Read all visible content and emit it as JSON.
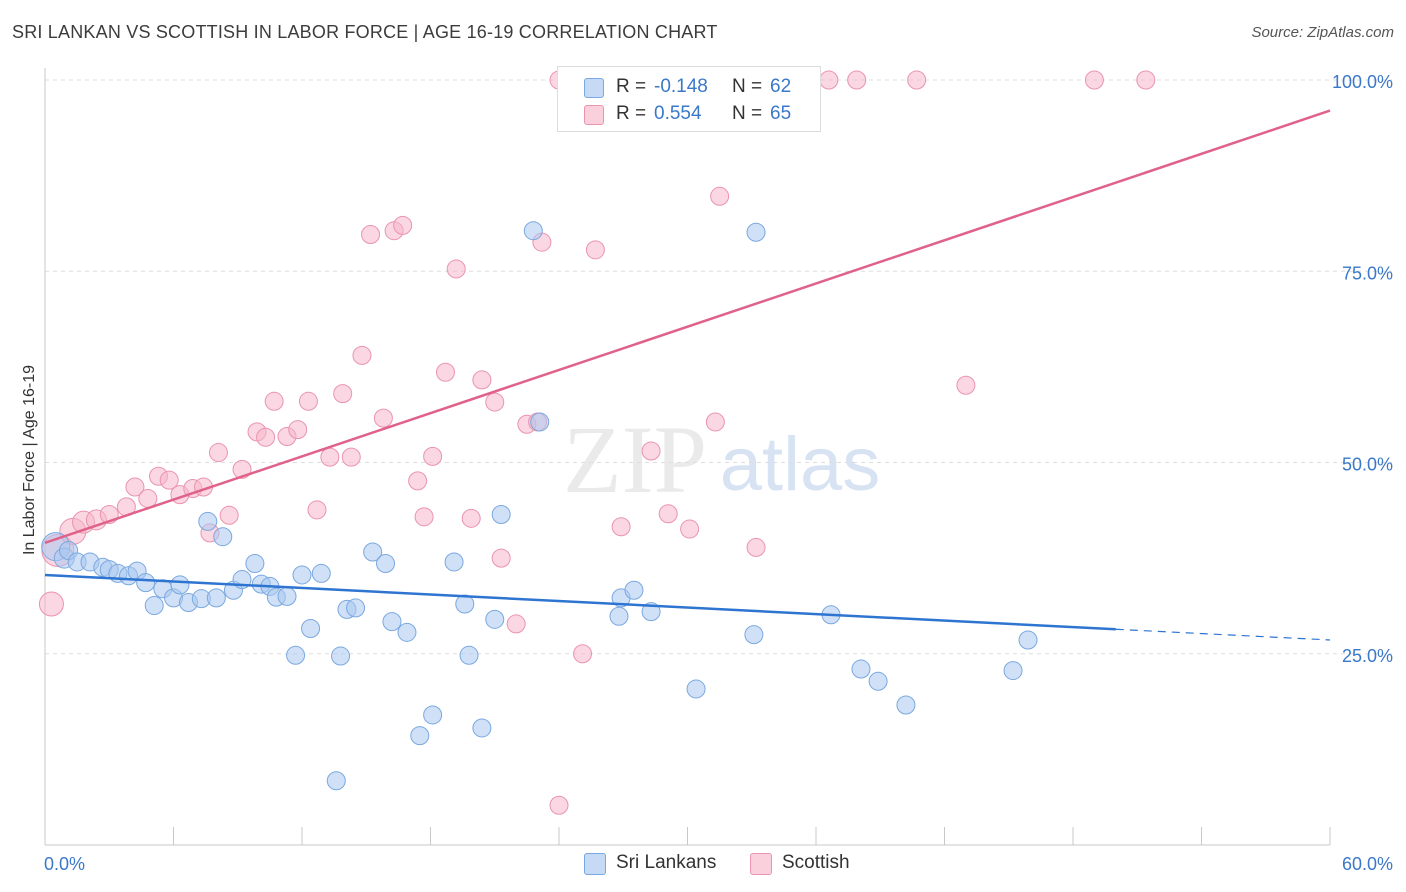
{
  "title": "SRI LANKAN VS SCOTTISH IN LABOR FORCE | AGE 16-19 CORRELATION CHART",
  "source": "Source: ZipAtlas.com",
  "watermark": {
    "zip": "ZIP",
    "atlas": "atlas"
  },
  "legend_stats": [
    {
      "r_label": "R =",
      "r_value": "-0.148",
      "n_label": "N =",
      "n_value": "62",
      "color": "#a9c8f0"
    },
    {
      "r_label": "R =",
      "r_value": "0.554",
      "n_label": "N =",
      "n_value": "65",
      "color": "#f6b6ca"
    }
  ],
  "legend_series": [
    {
      "label": "Sri Lankans",
      "color": "#a9c8f0"
    },
    {
      "label": "Scottish",
      "color": "#f6b6ca"
    }
  ],
  "chart_data": {
    "type": "scatter",
    "title": "SRI LANKAN VS SCOTTISH IN LABOR FORCE | AGE 16-19 CORRELATION CHART",
    "xlabel": "",
    "ylabel": "In Labor Force | Age 16-19",
    "xlim": [
      0,
      60
    ],
    "ylim": [
      0,
      101
    ],
    "x_ticks": [
      "0.0%",
      "60.0%"
    ],
    "y_ticks": [
      {
        "value": 25,
        "label": "25.0%"
      },
      {
        "value": 50,
        "label": "50.0%"
      },
      {
        "value": 75,
        "label": "75.0%"
      },
      {
        "value": 100,
        "label": "100.0%"
      }
    ],
    "grid": true,
    "legend_placement": "bottom-center",
    "series": [
      {
        "name": "Sri Lankans",
        "color": "#a9c8f0",
        "stroke": "#7aa8e0",
        "trend": {
          "x": [
            0,
            50
          ],
          "y": [
            35.3,
            28.2
          ],
          "dashed_to_x": 60,
          "dashed_to_y": 26.8,
          "color": "#2e74d1"
        },
        "points": [
          [
            0.5,
            39,
            14
          ],
          [
            0.9,
            37.5,
            10
          ],
          [
            1.1,
            38.5,
            9
          ],
          [
            1.5,
            37,
            9
          ],
          [
            2.1,
            37,
            9
          ],
          [
            2.7,
            36.3,
            9
          ],
          [
            3.0,
            36,
            9
          ],
          [
            3.4,
            35.5,
            9
          ],
          [
            3.9,
            35.2,
            9
          ],
          [
            4.3,
            35.8,
            9
          ],
          [
            4.7,
            34.3,
            9
          ],
          [
            5.1,
            31.3,
            9
          ],
          [
            5.5,
            33.5,
            9
          ],
          [
            6.0,
            32.3,
            9
          ],
          [
            6.3,
            34,
            9
          ],
          [
            6.7,
            31.7,
            9
          ],
          [
            7.3,
            32.2,
            9
          ],
          [
            7.6,
            42.3,
            9
          ],
          [
            8.0,
            32.3,
            9
          ],
          [
            8.3,
            40.3,
            9
          ],
          [
            8.8,
            33.3,
            9
          ],
          [
            9.2,
            34.7,
            9
          ],
          [
            9.8,
            36.8,
            9
          ],
          [
            10.1,
            34.1,
            9
          ],
          [
            10.5,
            33.8,
            9
          ],
          [
            10.8,
            32.4,
            9
          ],
          [
            11.3,
            32.5,
            9
          ],
          [
            11.7,
            24.8,
            9
          ],
          [
            12.0,
            35.3,
            9
          ],
          [
            12.4,
            28.3,
            9
          ],
          [
            12.9,
            35.5,
            9
          ],
          [
            13.8,
            24.7,
            9
          ],
          [
            14.1,
            30.8,
            9
          ],
          [
            15.3,
            38.3,
            9
          ],
          [
            15.9,
            36.8,
            9
          ],
          [
            16.2,
            29.2,
            9
          ],
          [
            16.9,
            27.8,
            9
          ],
          [
            17.5,
            14.3,
            9
          ],
          [
            18.1,
            17,
            9
          ],
          [
            19.1,
            37,
            9
          ],
          [
            19.6,
            31.5,
            9
          ],
          [
            19.8,
            24.8,
            9
          ],
          [
            20.4,
            15.3,
            9
          ],
          [
            21.0,
            29.5,
            9
          ],
          [
            21.3,
            43.2,
            9
          ],
          [
            13.6,
            8.4,
            9
          ],
          [
            23.1,
            55.3,
            9
          ],
          [
            22.8,
            80.3,
            9
          ],
          [
            26.8,
            29.9,
            9
          ],
          [
            26.9,
            32.3,
            9
          ],
          [
            27.5,
            33.3,
            9
          ],
          [
            28.3,
            30.5,
            9
          ],
          [
            30.4,
            20.4,
            9
          ],
          [
            33.2,
            80.1,
            9
          ],
          [
            33.1,
            27.5,
            9
          ],
          [
            36.7,
            30.1,
            9
          ],
          [
            38.1,
            23,
            9
          ],
          [
            38.9,
            21.4,
            9
          ],
          [
            40.2,
            18.3,
            9
          ],
          [
            45.2,
            22.8,
            9
          ],
          [
            45.9,
            26.8,
            9
          ],
          [
            14.5,
            31,
            9
          ]
        ]
      },
      {
        "name": "Scottish",
        "color": "#f6b6ca",
        "stroke": "#ea94b0",
        "trend": {
          "x": [
            0,
            60
          ],
          "y": [
            39.5,
            96
          ],
          "color": "#e0628a"
        },
        "points": [
          [
            0.3,
            31.5,
            12
          ],
          [
            0.6,
            38.5,
            16
          ],
          [
            1.3,
            41,
            13
          ],
          [
            1.8,
            42.2,
            11
          ],
          [
            2.4,
            42.5,
            10
          ],
          [
            3.0,
            43.2,
            9
          ],
          [
            3.8,
            44.2,
            9
          ],
          [
            4.2,
            46.8,
            9
          ],
          [
            4.8,
            45.3,
            9
          ],
          [
            5.3,
            48.2,
            9
          ],
          [
            5.8,
            47.7,
            9
          ],
          [
            6.3,
            45.8,
            9
          ],
          [
            6.9,
            46.6,
            9
          ],
          [
            7.4,
            46.8,
            9
          ],
          [
            7.7,
            40.8,
            9
          ],
          [
            8.1,
            51.3,
            9
          ],
          [
            8.6,
            43.1,
            9
          ],
          [
            9.2,
            49.1,
            9
          ],
          [
            9.9,
            54,
            9
          ],
          [
            10.3,
            53.3,
            9
          ],
          [
            10.7,
            58,
            9
          ],
          [
            11.3,
            53.4,
            9
          ],
          [
            11.8,
            54.3,
            9
          ],
          [
            12.3,
            58,
            9
          ],
          [
            12.7,
            43.8,
            9
          ],
          [
            13.3,
            50.7,
            9
          ],
          [
            13.9,
            59,
            9
          ],
          [
            14.3,
            50.7,
            9
          ],
          [
            14.8,
            64,
            9
          ],
          [
            15.2,
            79.8,
            9
          ],
          [
            15.8,
            55.8,
            9
          ],
          [
            16.3,
            80.3,
            9
          ],
          [
            16.7,
            81,
            9
          ],
          [
            17.4,
            47.6,
            9
          ],
          [
            17.7,
            42.9,
            9
          ],
          [
            18.1,
            50.8,
            9
          ],
          [
            18.7,
            61.8,
            9
          ],
          [
            19.2,
            75.3,
            9
          ],
          [
            19.9,
            42.7,
            9
          ],
          [
            20.4,
            60.8,
            9
          ],
          [
            21.0,
            57.9,
            9
          ],
          [
            21.3,
            37.5,
            9
          ],
          [
            22.0,
            28.9,
            9
          ],
          [
            22.5,
            55,
            9
          ],
          [
            23.0,
            55.3,
            9
          ],
          [
            23.2,
            78.8,
            9
          ],
          [
            24.0,
            5.2,
            9
          ],
          [
            25.1,
            25,
            9
          ],
          [
            25.7,
            77.8,
            9
          ],
          [
            26.9,
            41.6,
            9
          ],
          [
            28.3,
            51.5,
            9
          ],
          [
            29.1,
            43.3,
            9
          ],
          [
            30.1,
            41.3,
            9
          ],
          [
            31.3,
            55.3,
            9
          ],
          [
            31.5,
            84.8,
            9
          ],
          [
            33.2,
            38.9,
            9
          ],
          [
            24.0,
            100,
            9
          ],
          [
            28.6,
            100,
            9
          ],
          [
            36.6,
            100,
            9
          ],
          [
            37.9,
            100,
            9
          ],
          [
            40.7,
            100,
            9
          ],
          [
            43.0,
            60.1,
            9
          ],
          [
            49.0,
            100,
            9
          ],
          [
            51.4,
            100,
            9
          ],
          [
            26.0,
            100,
            9
          ]
        ]
      }
    ]
  }
}
